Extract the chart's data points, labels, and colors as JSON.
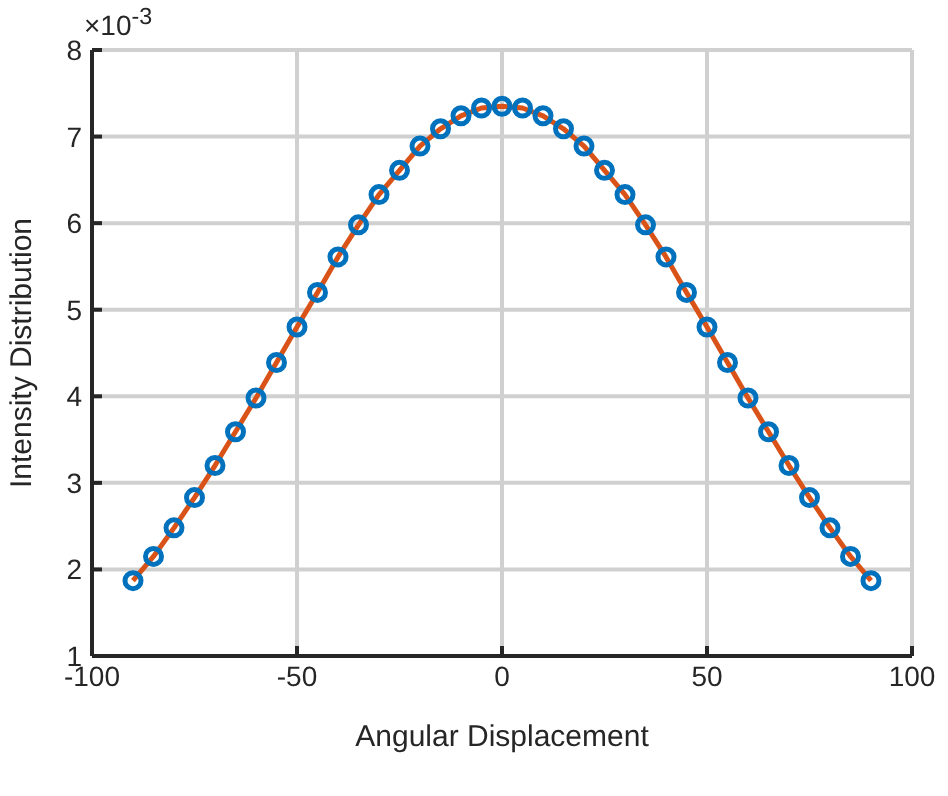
{
  "chart_data": {
    "type": "scatter",
    "xlabel": "Angular Displacement",
    "ylabel": "Intensity Distribution",
    "annotations": [
      "×10$^{-3}$"
    ],
    "x": [
      -90,
      -85,
      -80,
      -75,
      -70,
      -65,
      -60,
      -55,
      -50,
      -45,
      -40,
      -35,
      -30,
      -25,
      -20,
      -15,
      -10,
      -5,
      0,
      5,
      10,
      15,
      20,
      25,
      30,
      35,
      40,
      45,
      50,
      55,
      60,
      65,
      70,
      75,
      80,
      85,
      90
    ],
    "series": [
      {
        "color": "#0072bd",
        "marker": "circle",
        "values": [
          1.87,
          2.15,
          2.48,
          2.83,
          3.2,
          3.59,
          3.98,
          4.39,
          4.8,
          5.2,
          5.61,
          5.98,
          6.33,
          6.61,
          6.89,
          7.09,
          7.24,
          7.33,
          7.35,
          7.33,
          7.24,
          7.09,
          6.89,
          6.61,
          6.33,
          5.98,
          5.61,
          5.2,
          4.8,
          4.39,
          3.98,
          3.59,
          3.2,
          2.83,
          2.48,
          2.15,
          1.87
        ]
      },
      {
        "type": "line",
        "color": "#d95319",
        "marker": "none",
        "line_style": "solid",
        "values": [
          1.87,
          2.15,
          2.48,
          2.83,
          3.2,
          3.59,
          3.98,
          4.39,
          4.8,
          5.2,
          5.61,
          5.98,
          6.33,
          6.61,
          6.89,
          7.09,
          7.24,
          7.33,
          7.35,
          7.33,
          7.24,
          7.09,
          6.89,
          6.61,
          6.33,
          5.98,
          5.61,
          5.2,
          4.8,
          4.39,
          3.98,
          3.59,
          3.2,
          2.83,
          2.48,
          2.15,
          1.87
        ]
      }
    ],
    "xlim": [
      -100,
      100
    ],
    "xticks": [
      -100,
      -50,
      0,
      50,
      100
    ],
    "ylim": [
      1,
      8
    ],
    "yticks": [
      1,
      2,
      3,
      4,
      5,
      6,
      7,
      8
    ],
    "grid": true
  }
}
